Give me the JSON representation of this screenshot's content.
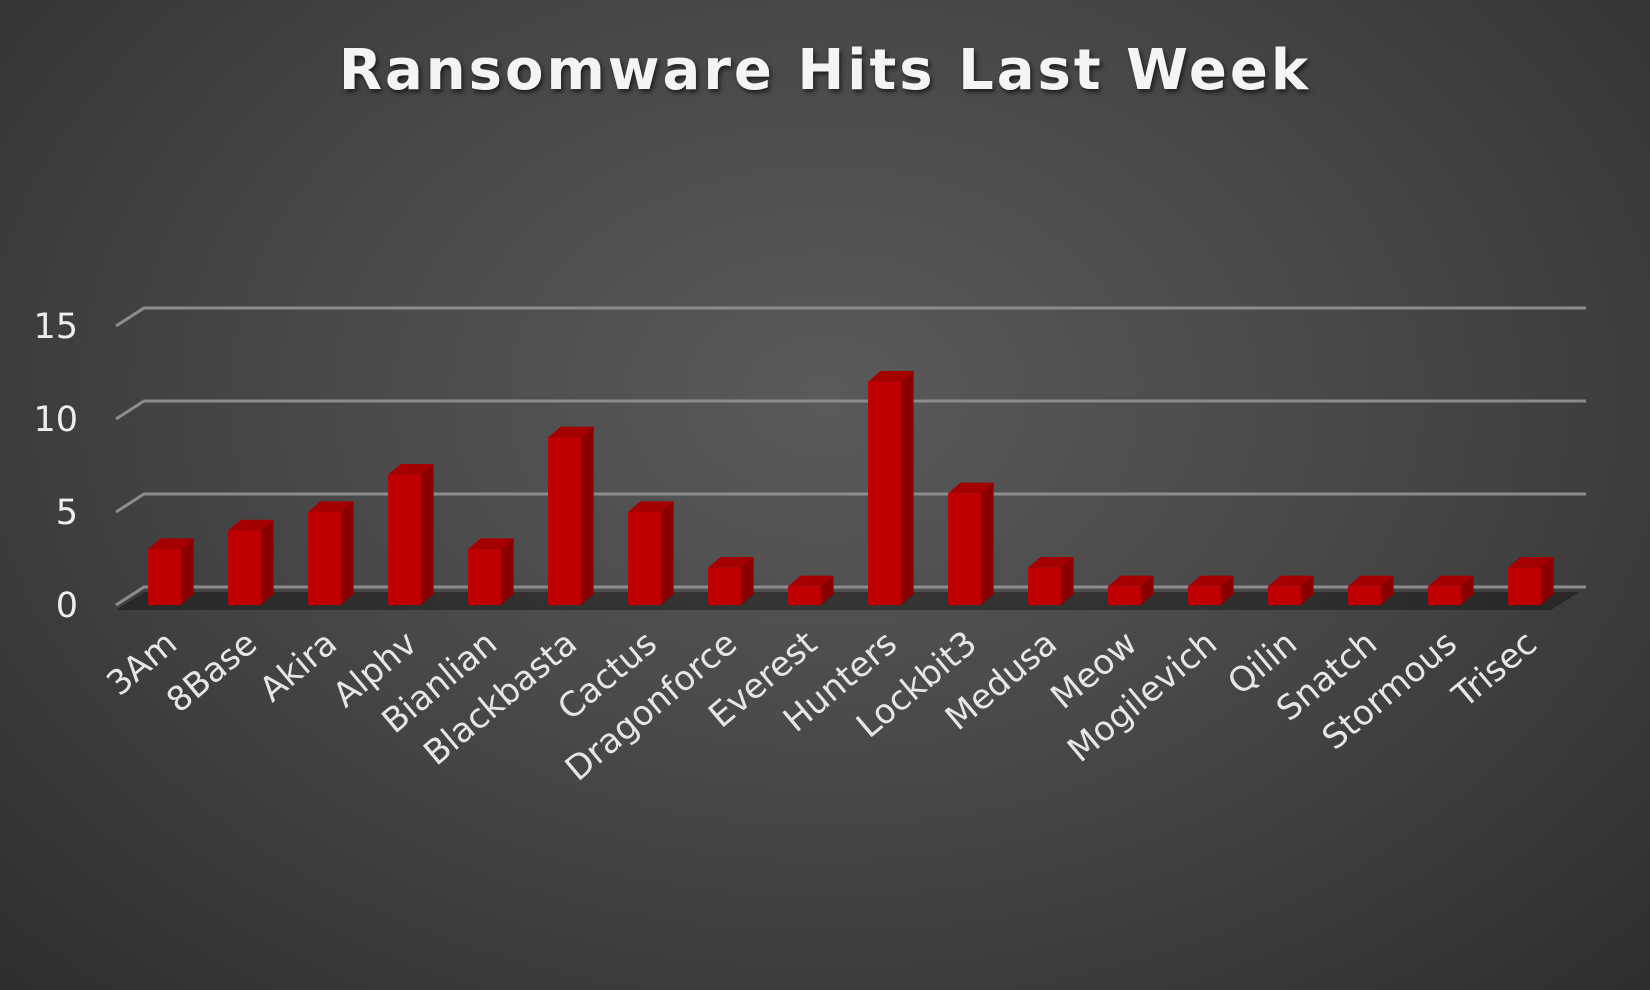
{
  "chart_data": {
    "type": "bar",
    "title": "Ransomware Hits Last Week",
    "xlabel": "",
    "ylabel": "",
    "ylim": [
      0,
      15
    ],
    "yticks": [
      0,
      5,
      10,
      15
    ],
    "grid": true,
    "legend": "none",
    "categories": [
      "3Am",
      "8Base",
      "Akira",
      "Alphv",
      "Bianlian",
      "Blackbasta",
      "Cactus",
      "Dragonforce",
      "Everest",
      "Hunters",
      "Lockbit3",
      "Medusa",
      "Meow",
      "Mogilevich",
      "Qilin",
      "Snatch",
      "Stormous",
      "Trisec"
    ],
    "values": [
      3,
      4,
      5,
      7,
      3,
      9,
      5,
      2,
      1,
      12,
      6,
      2,
      1,
      1,
      1,
      1,
      1,
      2
    ]
  },
  "colors": {
    "bar_front": "#c00000",
    "bar_side": "#8a0000",
    "bar_top": "#a50000",
    "gridline": "#8c8c8c"
  }
}
